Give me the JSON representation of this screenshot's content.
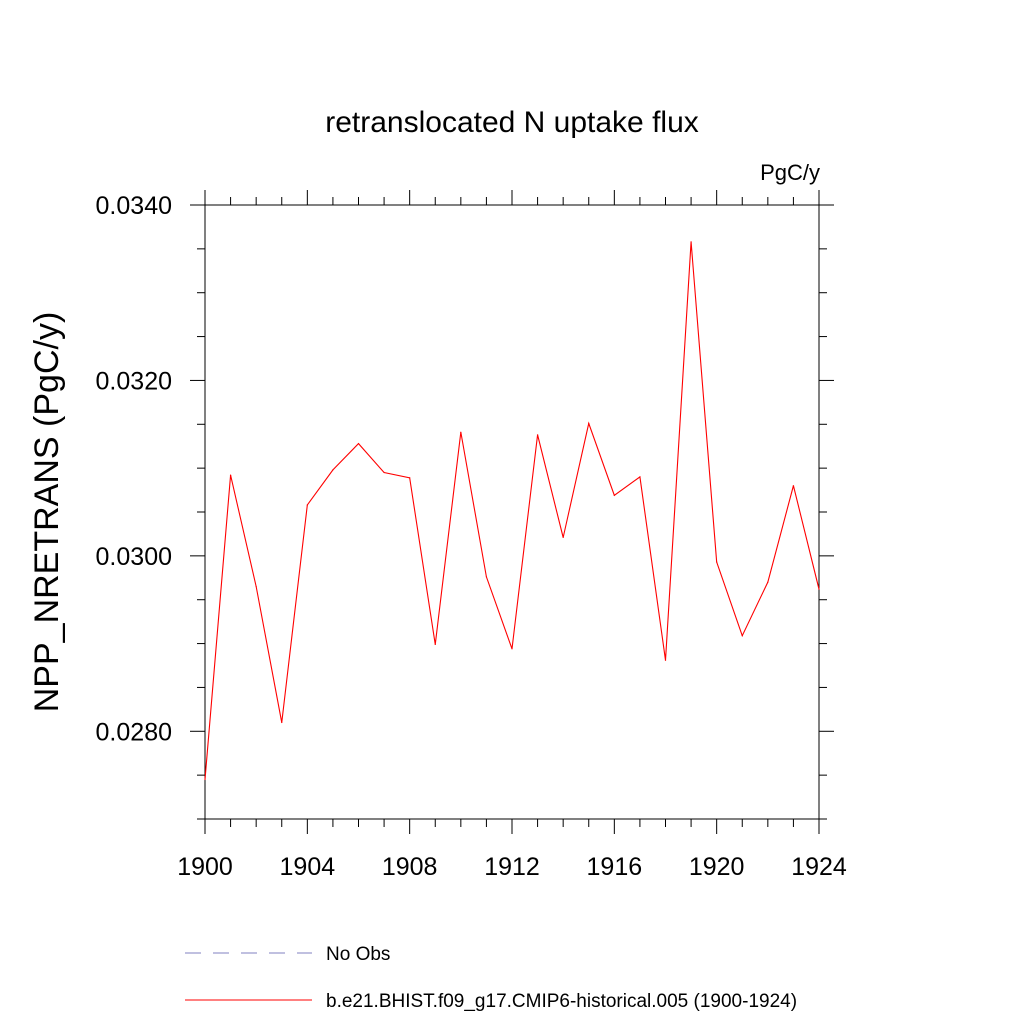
{
  "chart_data": {
    "type": "line",
    "title": "retranslocated N uptake flux",
    "units_label": "PgC/y",
    "ylabel": "NPP_NRETRANS  (PgC/y)",
    "xlabel": "",
    "xlim": [
      1900,
      1924
    ],
    "ylim": [
      0.027,
      0.034
    ],
    "x_major_ticks": [
      1900,
      1904,
      1908,
      1912,
      1916,
      1920,
      1924
    ],
    "x_minor_step": 1,
    "y_major_ticks": [
      0.028,
      0.03,
      0.032,
      0.034
    ],
    "y_tick_labels": [
      "0.0280",
      "0.0300",
      "0.0320",
      "0.0340"
    ],
    "y_minor_step": 0.0005,
    "grid": false,
    "legend_position": "bottom",
    "series": [
      {
        "name": "b.e21.BHIST.f09_g17.CMIP6-historical.005 (1900-1924)",
        "color": "#ff0000",
        "style": "solid",
        "x": [
          1900,
          1901,
          1902,
          1903,
          1904,
          1905,
          1906,
          1907,
          1908,
          1909,
          1910,
          1911,
          1912,
          1913,
          1914,
          1915,
          1916,
          1917,
          1918,
          1919,
          1920,
          1921,
          1922,
          1923,
          1924
        ],
        "values": [
          0.02745,
          0.03092,
          0.02965,
          0.0281,
          0.03058,
          0.03098,
          0.03128,
          0.03095,
          0.03089,
          0.02899,
          0.03141,
          0.02976,
          0.02894,
          0.03138,
          0.03021,
          0.03151,
          0.03069,
          0.0309,
          0.02881,
          0.03358,
          0.02993,
          0.02909,
          0.0297,
          0.0308,
          0.02962
        ]
      }
    ],
    "legend": [
      {
        "label": "No Obs",
        "color": "#8080c0",
        "style": "dashed"
      },
      {
        "label": "b.e21.BHIST.f09_g17.CMIP6-historical.005 (1900-1924)",
        "color": "#ff0000",
        "style": "solid"
      }
    ]
  }
}
